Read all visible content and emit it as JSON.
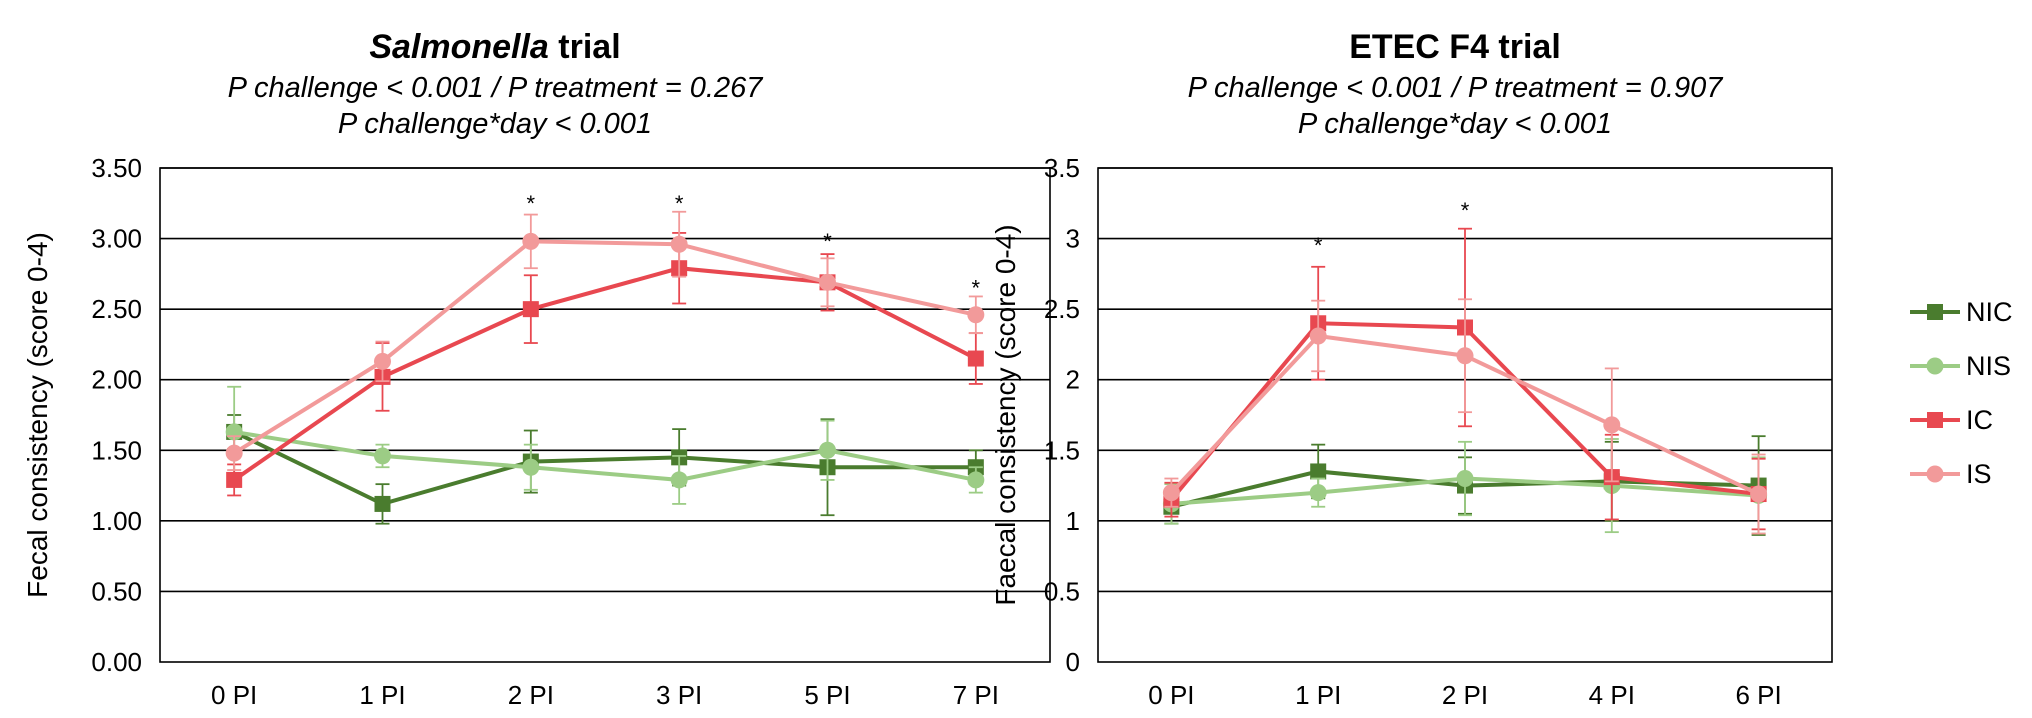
{
  "figure": {
    "legend": [
      {
        "name": "NIC",
        "color": "#4a7c2e",
        "marker": "square"
      },
      {
        "name": "NIS",
        "color": "#9ccc85",
        "marker": "circle"
      },
      {
        "name": "IC",
        "color": "#e84850",
        "marker": "square"
      },
      {
        "name": "IS",
        "color": "#f29a9a",
        "marker": "circle"
      }
    ]
  },
  "chart_data": [
    {
      "type": "line",
      "title_italic": "Salmonella",
      "title_rest": " trial",
      "subtitle_line1": "P challenge < 0.001 / P treatment = 0.267",
      "subtitle_line2": "P challenge*day < 0.001",
      "xlabel": "",
      "ylabel": "Fecal consistency (score 0-4)",
      "ylim": [
        0,
        3.5
      ],
      "yticks": [
        "0.00",
        "0.50",
        "1.00",
        "1.50",
        "2.00",
        "2.50",
        "3.00",
        "3.50"
      ],
      "grid": true,
      "categories": [
        "0 PI",
        "1 PI",
        "2 PI",
        "3 PI",
        "5 PI",
        "7 PI"
      ],
      "series": [
        {
          "name": "NIC",
          "values": [
            1.63,
            1.12,
            1.42,
            1.45,
            1.38,
            1.38
          ],
          "errors": [
            0.12,
            0.14,
            0.22,
            0.2,
            0.34,
            0.12
          ]
        },
        {
          "name": "NIS",
          "values": [
            1.63,
            1.46,
            1.38,
            1.29,
            1.5,
            1.29
          ],
          "errors": [
            0.32,
            0.08,
            0.16,
            0.17,
            0.21,
            0.09
          ]
        },
        {
          "name": "IC",
          "values": [
            1.29,
            2.02,
            2.5,
            2.79,
            2.69,
            2.15
          ],
          "errors": [
            0.11,
            0.24,
            0.24,
            0.25,
            0.2,
            0.18
          ]
        },
        {
          "name": "IS",
          "values": [
            1.48,
            2.13,
            2.98,
            2.96,
            2.69,
            2.46
          ],
          "errors": [
            0.12,
            0.14,
            0.19,
            0.23,
            0.17,
            0.13
          ]
        }
      ],
      "annotations": [
        {
          "category": "2 PI",
          "value": 3.25,
          "text": "*"
        },
        {
          "category": "3 PI",
          "value": 3.25,
          "text": "*"
        },
        {
          "category": "5 PI",
          "value": 2.98,
          "text": "*"
        },
        {
          "category": "7 PI",
          "value": 2.65,
          "text": "*"
        }
      ]
    },
    {
      "type": "line",
      "title_italic": "",
      "title_rest": "ETEC F4 trial",
      "subtitle_line1": "P challenge < 0.001 / P treatment = 0.907",
      "subtitle_line2": "P challenge*day < 0.001",
      "xlabel": "",
      "ylabel": "Faecal consistency (score 0-4)",
      "ylim": [
        0,
        3.5
      ],
      "yticks": [
        "0",
        "0.5",
        "1",
        "1.5",
        "2",
        "2.5",
        "3",
        "3.5"
      ],
      "grid": true,
      "categories": [
        "0 PI",
        "1 PI",
        "2 PI",
        "4 PI",
        "6 PI"
      ],
      "series": [
        {
          "name": "NIC",
          "values": [
            1.1,
            1.35,
            1.25,
            1.28,
            1.25
          ],
          "errors": [
            0.12,
            0.19,
            0.2,
            0.28,
            0.35
          ]
        },
        {
          "name": "NIS",
          "values": [
            1.12,
            1.2,
            1.3,
            1.25,
            1.18
          ],
          "errors": [
            0.14,
            0.1,
            0.26,
            0.33,
            0.27
          ]
        },
        {
          "name": "IC",
          "values": [
            1.15,
            2.4,
            2.37,
            1.31,
            1.19
          ],
          "errors": [
            0.12,
            0.4,
            0.7,
            0.3,
            0.25
          ]
        },
        {
          "name": "IS",
          "values": [
            1.2,
            2.31,
            2.17,
            1.68,
            1.19
          ],
          "errors": [
            0.1,
            0.25,
            0.4,
            0.4,
            0.28
          ]
        }
      ],
      "annotations": [
        {
          "category": "1 PI",
          "value": 2.95,
          "text": "*"
        },
        {
          "category": "2 PI",
          "value": 3.2,
          "text": "*"
        }
      ]
    }
  ]
}
